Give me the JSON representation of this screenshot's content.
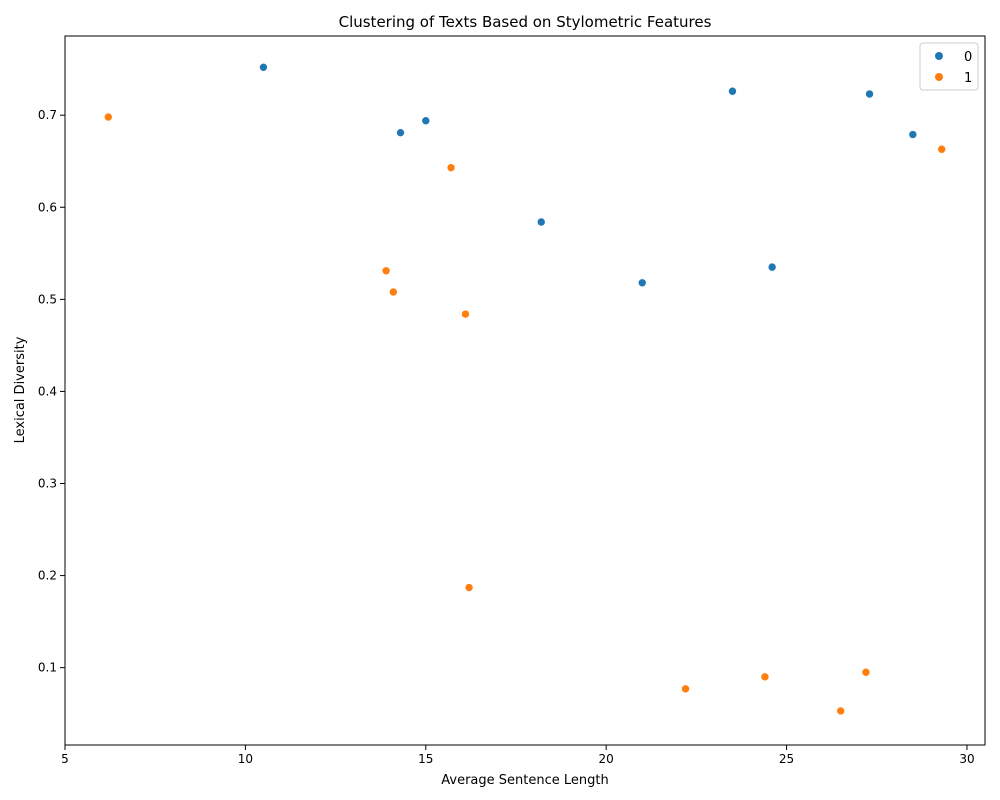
{
  "chart_data": {
    "type": "scatter",
    "title": "Clustering of Texts Based on Stylometric Features",
    "xlabel": "Average Sentence Length",
    "ylabel": "Lexical Diversity",
    "xlim": [
      5,
      30.5
    ],
    "ylim": [
      0.016,
      0.786
    ],
    "xticks": [
      5,
      10,
      15,
      20,
      25,
      30
    ],
    "yticks": [
      0.1,
      0.2,
      0.3,
      0.4,
      0.5,
      0.6,
      0.7
    ],
    "xtick_labels": [
      "5",
      "10",
      "15",
      "20",
      "25",
      "30"
    ],
    "ytick_labels": [
      "0.1",
      "0.2",
      "0.3",
      "0.4",
      "0.5",
      "0.6",
      "0.7"
    ],
    "grid": false,
    "legend_position": "top-right",
    "series": [
      {
        "name": "0",
        "color": "#1f77b4",
        "points": [
          {
            "x": 10.5,
            "y": 0.752
          },
          {
            "x": 14.3,
            "y": 0.681
          },
          {
            "x": 15.0,
            "y": 0.694
          },
          {
            "x": 18.2,
            "y": 0.584
          },
          {
            "x": 21.0,
            "y": 0.518
          },
          {
            "x": 23.5,
            "y": 0.726
          },
          {
            "x": 24.6,
            "y": 0.535
          },
          {
            "x": 27.3,
            "y": 0.723
          },
          {
            "x": 28.5,
            "y": 0.679
          }
        ]
      },
      {
        "name": "1",
        "color": "#ff7f0e",
        "points": [
          {
            "x": 6.2,
            "y": 0.698
          },
          {
            "x": 13.9,
            "y": 0.531
          },
          {
            "x": 14.1,
            "y": 0.508
          },
          {
            "x": 15.7,
            "y": 0.643
          },
          {
            "x": 16.1,
            "y": 0.484
          },
          {
            "x": 16.2,
            "y": 0.187
          },
          {
            "x": 22.2,
            "y": 0.077
          },
          {
            "x": 24.4,
            "y": 0.09
          },
          {
            "x": 26.5,
            "y": 0.053
          },
          {
            "x": 27.2,
            "y": 0.095
          },
          {
            "x": 29.3,
            "y": 0.663
          }
        ]
      }
    ]
  }
}
